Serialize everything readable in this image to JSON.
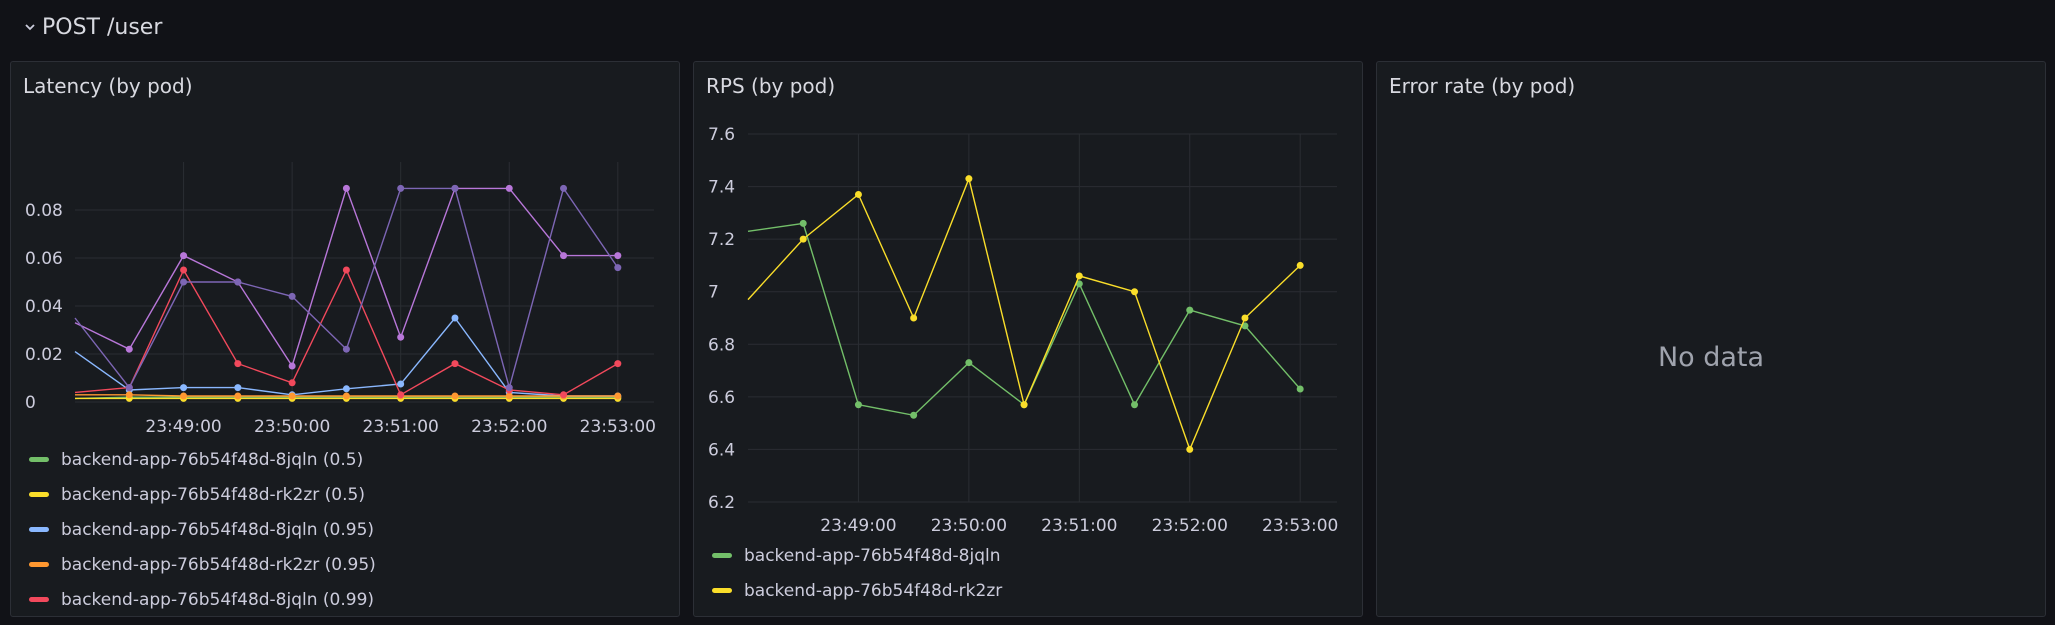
{
  "row": {
    "title": "POST /user"
  },
  "panels": {
    "latency": {
      "title": "Latency (by pod)",
      "legend": [
        {
          "label": "backend-app-76b54f48d-8jqln (0.5)",
          "color": "#73bf69"
        },
        {
          "label": "backend-app-76b54f48d-rk2zr (0.5)",
          "color": "#fade2a"
        },
        {
          "label": "backend-app-76b54f48d-8jqln (0.95)",
          "color": "#8ab8ff"
        },
        {
          "label": "backend-app-76b54f48d-rk2zr (0.95)",
          "color": "#ff9830"
        },
        {
          "label": "backend-app-76b54f48d-8jqln (0.99)",
          "color": "#f2495c"
        }
      ]
    },
    "rps": {
      "title": "RPS (by pod)",
      "legend": [
        {
          "label": "backend-app-76b54f48d-8jqln",
          "color": "#73bf69"
        },
        {
          "label": "backend-app-76b54f48d-rk2zr",
          "color": "#fade2a"
        }
      ]
    },
    "error": {
      "title": "Error rate (by pod)",
      "nodata": "No data"
    }
  },
  "chart_data": [
    {
      "type": "line",
      "title": "Latency (by pod)",
      "x_ticks": [
        "23:49:00",
        "23:50:00",
        "23:51:00",
        "23:52:00",
        "23:53:00"
      ],
      "y_ticks": [
        "0",
        "0.02",
        "0.04",
        "0.06",
        "0.08"
      ],
      "ylim": [
        0,
        0.1
      ],
      "x_times": [
        "23:48:00",
        "23:48:30",
        "23:49:00",
        "23:49:30",
        "23:50:00",
        "23:50:30",
        "23:51:00",
        "23:51:30",
        "23:52:00",
        "23:52:30",
        "23:53:00"
      ],
      "series": [
        {
          "name": "backend-app-76b54f48d-8jqln (0.5)",
          "color": "#73bf69",
          "values": [
            0.0015,
            0.002,
            0.002,
            0.002,
            0.002,
            0.002,
            0.002,
            0.002,
            0.002,
            0.002,
            0.002
          ]
        },
        {
          "name": "backend-app-76b54f48d-rk2zr (0.5)",
          "color": "#fade2a",
          "values": [
            0.0015,
            0.0015,
            0.0015,
            0.0015,
            0.0015,
            0.0015,
            0.0015,
            0.0015,
            0.0015,
            0.0015,
            0.0015
          ]
        },
        {
          "name": "backend-app-76b54f48d-8jqln (0.95)",
          "color": "#8ab8ff",
          "values": [
            0.021,
            0.005,
            0.006,
            0.006,
            0.003,
            0.0055,
            0.0075,
            0.035,
            0.004,
            0.0025,
            0.0025
          ]
        },
        {
          "name": "backend-app-76b54f48d-rk2zr (0.95)",
          "color": "#ff9830",
          "values": [
            0.003,
            0.003,
            0.0025,
            0.0025,
            0.0025,
            0.0025,
            0.0025,
            0.0025,
            0.0025,
            0.0025,
            0.0025
          ]
        },
        {
          "name": "backend-app-76b54f48d-8jqln (0.99)",
          "color": "#f2495c",
          "values": [
            0.004,
            0.006,
            0.055,
            0.016,
            0.008,
            0.055,
            0.003,
            0.016,
            0.005,
            0.003,
            0.016
          ]
        },
        {
          "name": "",
          "color": "#b877d9",
          "values": [
            0.033,
            0.022,
            0.061,
            0.05,
            0.015,
            0.089,
            0.027,
            0.089,
            0.089,
            0.061,
            0.061
          ]
        },
        {
          "name": "",
          "color": "#7d66b5",
          "values": [
            0.035,
            0.006,
            0.05,
            0.05,
            0.044,
            0.022,
            0.089,
            0.089,
            0.006,
            0.089,
            0.056
          ]
        }
      ]
    },
    {
      "type": "line",
      "title": "RPS (by pod)",
      "x_ticks": [
        "23:49:00",
        "23:50:00",
        "23:51:00",
        "23:52:00",
        "23:53:00"
      ],
      "y_ticks": [
        "6.2",
        "6.4",
        "6.6",
        "6.8",
        "7",
        "7.2",
        "7.4",
        "7.6"
      ],
      "ylim": [
        6.2,
        7.6
      ],
      "series": [
        {
          "name": "backend-app-76b54f48d-8jqln",
          "color": "#73bf69",
          "x_times": [
            "23:48:00",
            "23:48:30",
            "23:49:00",
            "23:49:30",
            "23:50:00",
            "23:50:30",
            "23:51:00",
            "23:51:30",
            "23:52:00",
            "23:52:30",
            "23:53:00"
          ],
          "values": [
            7.23,
            7.26,
            6.57,
            6.53,
            6.73,
            6.57,
            7.03,
            6.57,
            6.93,
            6.87,
            6.63
          ]
        },
        {
          "name": "backend-app-76b54f48d-rk2zr",
          "color": "#fade2a",
          "x_times": [
            "23:48:00",
            "23:48:30",
            "23:49:00",
            "23:49:30",
            "23:50:00",
            "23:50:30",
            "23:51:00",
            "23:51:30",
            "23:52:00",
            "23:52:30",
            "23:53:00"
          ],
          "values": [
            6.97,
            7.2,
            7.37,
            6.9,
            7.43,
            6.57,
            7.06,
            7.0,
            6.4,
            6.9,
            7.1
          ]
        }
      ]
    }
  ]
}
